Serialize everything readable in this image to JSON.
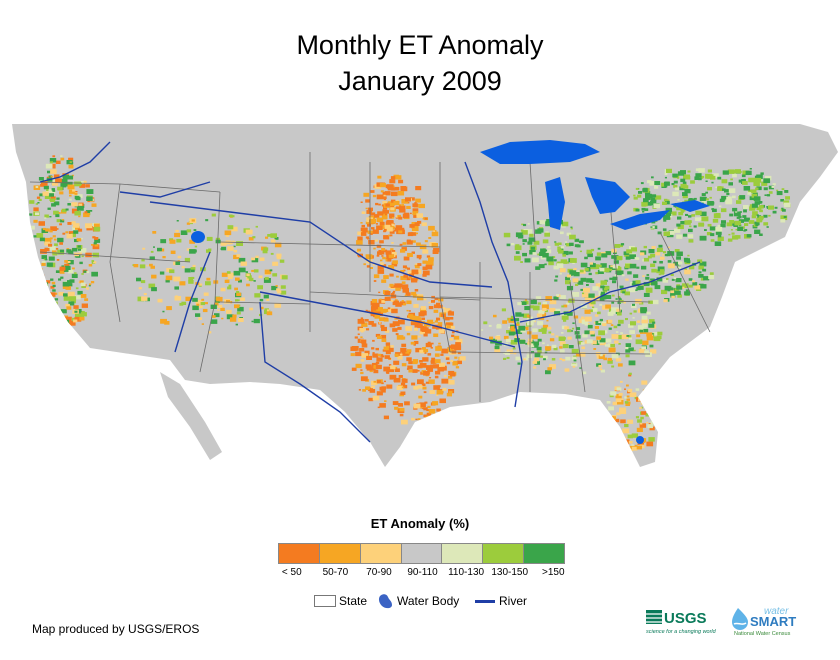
{
  "title": {
    "line1": "Monthly ET Anomaly",
    "line2": "January 2009"
  },
  "legend": {
    "title": "ET Anomaly (%)",
    "classes": [
      {
        "label": "< 50",
        "color": "#f47b20"
      },
      {
        "label": "50-70",
        "color": "#f6a623"
      },
      {
        "label": "70-90",
        "color": "#fdd17a"
      },
      {
        "label": "90-110",
        "color": "#c8c8c8"
      },
      {
        "label": "110-130",
        "color": "#dde8b9"
      },
      {
        "label": "130-150",
        "color": "#9ccc3c"
      },
      {
        "label": ">150",
        "color": "#3aa54a"
      }
    ],
    "symbols": {
      "state": "State",
      "water_body": "Water Body",
      "river": "River"
    }
  },
  "colors": {
    "water": "#0b5fe0",
    "river": "#1f3ea6",
    "background_land": "#c8c8c8"
  },
  "credit": "Map produced by USGS/EROS",
  "logos": {
    "usgs": "USGS",
    "usgs_tagline": "science for a changing world",
    "ws_top": "water",
    "ws_main": "SMART",
    "ws_sub": "National Water Census"
  }
}
